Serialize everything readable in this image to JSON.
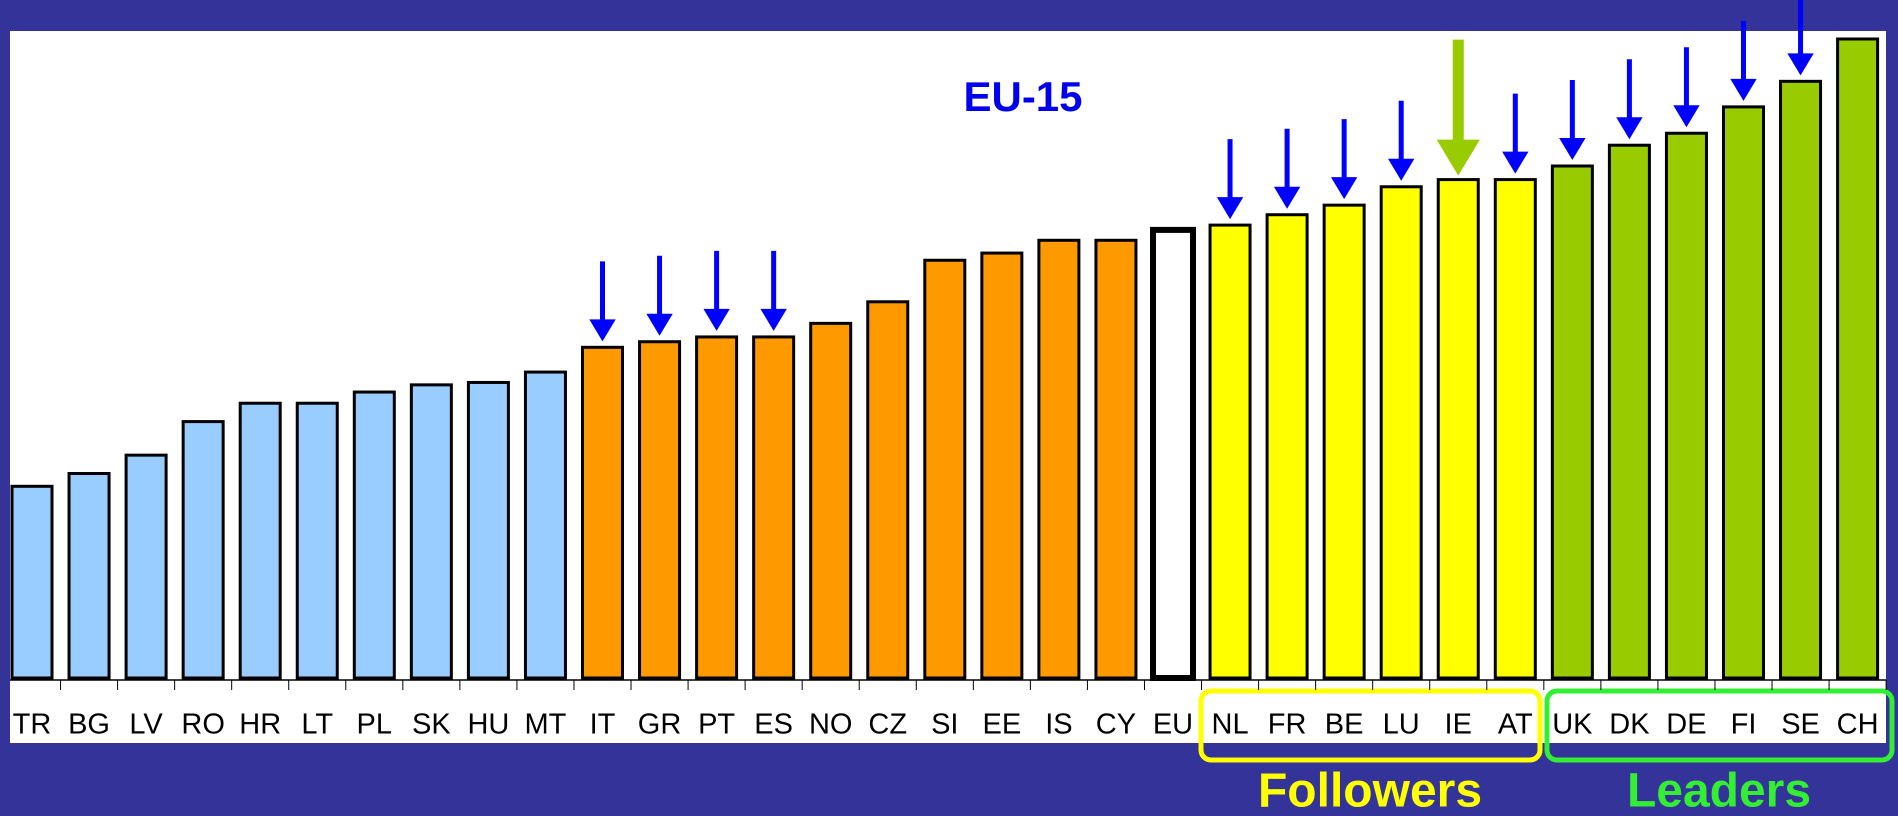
{
  "chart_data": {
    "type": "bar",
    "categories": [
      "TR",
      "BG",
      "LV",
      "RO",
      "HR",
      "LT",
      "PL",
      "SK",
      "HU",
      "MT",
      "IT",
      "GR",
      "PT",
      "ES",
      "NO",
      "CZ",
      "SI",
      "EE",
      "IS",
      "CY",
      "EU",
      "NL",
      "FR",
      "BE",
      "LU",
      "IE",
      "AT",
      "UK",
      "DK",
      "DE",
      "FI",
      "SE",
      "CH"
    ],
    "values": [
      0.24,
      0.256,
      0.279,
      0.321,
      0.344,
      0.344,
      0.358,
      0.367,
      0.37,
      0.383,
      0.414,
      0.421,
      0.427,
      0.427,
      0.444,
      0.471,
      0.523,
      0.532,
      0.548,
      0.548,
      0.561,
      0.567,
      0.58,
      0.592,
      0.615,
      0.624,
      0.624,
      0.641,
      0.667,
      0.682,
      0.715,
      0.747,
      0.8
    ],
    "colors": [
      "#99ccff",
      "#99ccff",
      "#99ccff",
      "#99ccff",
      "#99ccff",
      "#99ccff",
      "#99ccff",
      "#99ccff",
      "#99ccff",
      "#99ccff",
      "#ff9900",
      "#ff9900",
      "#ff9900",
      "#ff9900",
      "#ff9900",
      "#ff9900",
      "#ff9900",
      "#ff9900",
      "#ff9900",
      "#ff9900",
      "#ffffff",
      "#ffff00",
      "#ffff00",
      "#ffff00",
      "#ffff00",
      "#ffff00",
      "#ffff00",
      "#99cc00",
      "#99cc00",
      "#99cc00",
      "#99cc00",
      "#99cc00",
      "#99cc00"
    ],
    "ylim": [
      0,
      0.8
    ],
    "annotations": [
      "EU-15",
      "Followers",
      "Leaders"
    ]
  }
}
